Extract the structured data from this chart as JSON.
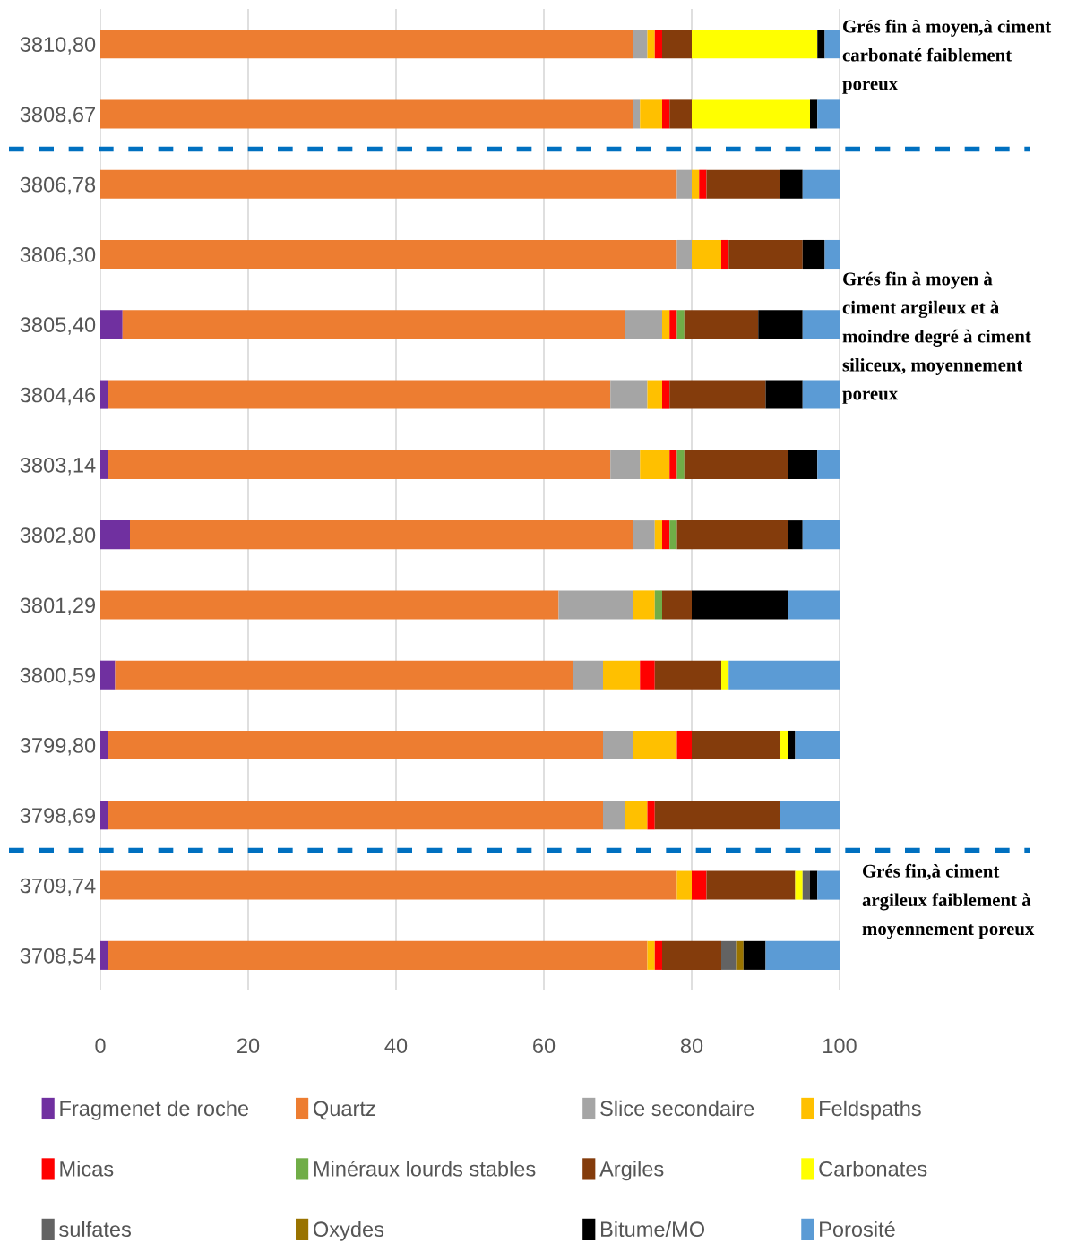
{
  "chart_data": {
    "type": "bar",
    "orientation": "horizontal",
    "stacked": true,
    "categories": [
      "3810,80",
      "3808,67",
      "3806,78",
      "3806,30",
      "3805,40",
      "3804,46",
      "3803,14",
      "3802,80",
      "3801,29",
      "3800,59",
      "3799,80",
      "3798,69",
      "3709,74",
      "3708,54"
    ],
    "series": [
      {
        "name": "Fragmenet de roche",
        "color": "#7030a0",
        "values": [
          0,
          0,
          0,
          0,
          3,
          1,
          1,
          4,
          0,
          2,
          1,
          1,
          0,
          1
        ]
      },
      {
        "name": "Quartz",
        "color": "#ed7d31",
        "values": [
          72,
          72,
          78,
          78,
          68,
          68,
          68,
          68,
          62,
          62,
          67,
          67,
          78,
          73
        ]
      },
      {
        "name": "Slice secondaire",
        "color": "#a5a5a5",
        "values": [
          2,
          1,
          2,
          2,
          5,
          5,
          4,
          3,
          10,
          4,
          4,
          3,
          0,
          0
        ]
      },
      {
        "name": "Feldspaths",
        "color": "#ffc000",
        "values": [
          1,
          3,
          1,
          4,
          1,
          2,
          4,
          1,
          3,
          5,
          6,
          3,
          2,
          1
        ]
      },
      {
        "name": "Micas",
        "color": "#ff0000",
        "values": [
          1,
          1,
          1,
          1,
          1,
          1,
          1,
          1,
          0,
          2,
          2,
          1,
          2,
          1
        ]
      },
      {
        "name": "Minéraux lourds stables",
        "color": "#70ad47",
        "values": [
          0,
          0,
          0,
          0,
          1,
          0,
          1,
          1,
          1,
          0,
          0,
          0,
          0,
          0
        ]
      },
      {
        "name": "Argiles",
        "color": "#843c0c",
        "values": [
          4,
          3,
          10,
          10,
          10,
          13,
          14,
          15,
          4,
          9,
          12,
          17,
          12,
          8
        ]
      },
      {
        "name": "Carbonates",
        "color": "#ffff00",
        "values": [
          17,
          16,
          0,
          0,
          0,
          0,
          0,
          0,
          0,
          1,
          1,
          0,
          1,
          0
        ]
      },
      {
        "name": "sulfates",
        "color": "#636363",
        "values": [
          0,
          0,
          0,
          0,
          0,
          0,
          0,
          0,
          0,
          0,
          0,
          0,
          1,
          2
        ]
      },
      {
        "name": "Oxydes",
        "color": "#997300",
        "values": [
          0,
          0,
          0,
          0,
          0,
          0,
          0,
          0,
          0,
          0,
          0,
          0,
          0,
          1
        ]
      },
      {
        "name": "Bitume/MO",
        "color": "#000000",
        "values": [
          1,
          1,
          3,
          3,
          6,
          5,
          4,
          2,
          13,
          0,
          1,
          0,
          1,
          3
        ]
      },
      {
        "name": "Porosité",
        "color": "#5b9bd5",
        "values": [
          2,
          3,
          5,
          2,
          5,
          5,
          3,
          5,
          7,
          15,
          6,
          8,
          3,
          10
        ]
      }
    ],
    "xlim": [
      0,
      100
    ],
    "xticks": [
      0,
      20,
      40,
      60,
      80,
      100
    ],
    "grid": "x",
    "legend": "bottom",
    "annotations": [
      "Grés fin à moyen,à ciment\ncarbonaté faiblement\nporeux",
      "Grés fin à moyen à\nciment argileux et à\nmoindre degré à ciment\nsiliceux, moyennement\nporeux",
      "Grés fin,à ciment\nargileux faiblement à\nmoyennement poreux"
    ]
  }
}
